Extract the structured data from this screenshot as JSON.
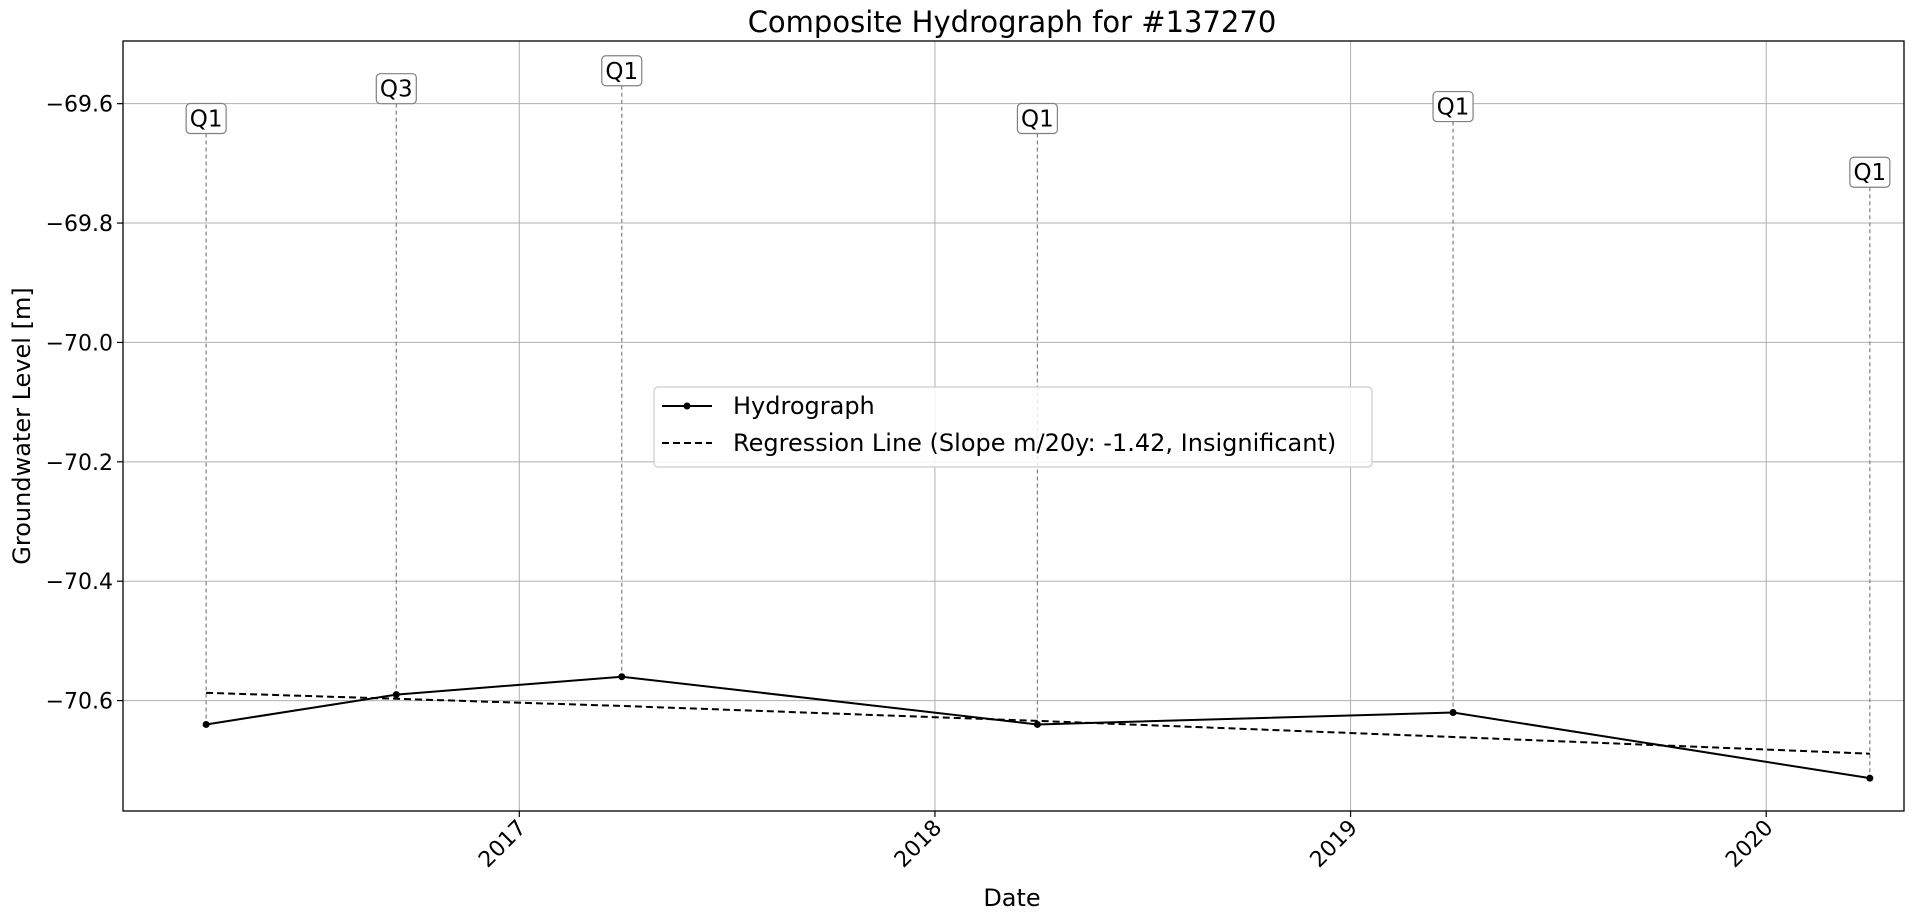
{
  "chart_data": {
    "type": "line",
    "title": "Composite Hydrograph for  #137270",
    "xlabel": "Date",
    "ylabel": "Groundwater Level [m]",
    "xlim": [
      "2016-01-19",
      "2020-05-01"
    ],
    "ylim": [
      -70.785,
      -69.495
    ],
    "x_ticks": [
      "2017-01-01",
      "2018-01-01",
      "2019-01-01",
      "2020-01-01"
    ],
    "x_tick_labels": [
      "2017",
      "2018",
      "2019",
      "2020"
    ],
    "y_ticks": [
      -69.6,
      -69.8,
      -70.0,
      -70.2,
      -70.4,
      -70.6
    ],
    "y_tick_labels": [
      "−69.6",
      "−69.8",
      "−70.0",
      "−70.2",
      "−70.4",
      "−70.6"
    ],
    "grid": true,
    "legend_position": "center",
    "series": [
      {
        "name": "Hydrograph",
        "style": "solid",
        "marker": "dot",
        "color": "#000000",
        "x": [
          "2016-04-01",
          "2016-09-15",
          "2017-04-01",
          "2018-04-01",
          "2019-04-01",
          "2020-04-01"
        ],
        "y": [
          -70.64,
          -70.59,
          -70.56,
          -70.64,
          -70.62,
          -70.73
        ]
      },
      {
        "name": "Regression Line (Slope m/20y: -1.42, Insignificant)",
        "style": "dashed",
        "color": "#000000",
        "x": [
          "2016-04-01",
          "2016-09-15",
          "2017-04-01",
          "2018-04-01",
          "2019-04-01",
          "2020-04-01"
        ],
        "y": [
          -70.587,
          -70.597,
          -70.609,
          -70.634,
          -70.661,
          -70.689
        ]
      }
    ],
    "annotations": [
      {
        "label": "Q1",
        "x": "2016-04-01",
        "y_top": -69.65,
        "y_bottom": -70.64
      },
      {
        "label": "Q3",
        "x": "2016-09-15",
        "y_top": -69.6,
        "y_bottom": -70.59
      },
      {
        "label": "Q1",
        "x": "2017-04-01",
        "y_top": -69.57,
        "y_bottom": -70.56
      },
      {
        "label": "Q1",
        "x": "2018-04-01",
        "y_top": -69.65,
        "y_bottom": -70.64
      },
      {
        "label": "Q1",
        "x": "2019-04-01",
        "y_top": -69.63,
        "y_bottom": -70.62
      },
      {
        "label": "Q1",
        "x": "2020-04-01",
        "y_top": -69.74,
        "y_bottom": -70.73
      }
    ]
  }
}
